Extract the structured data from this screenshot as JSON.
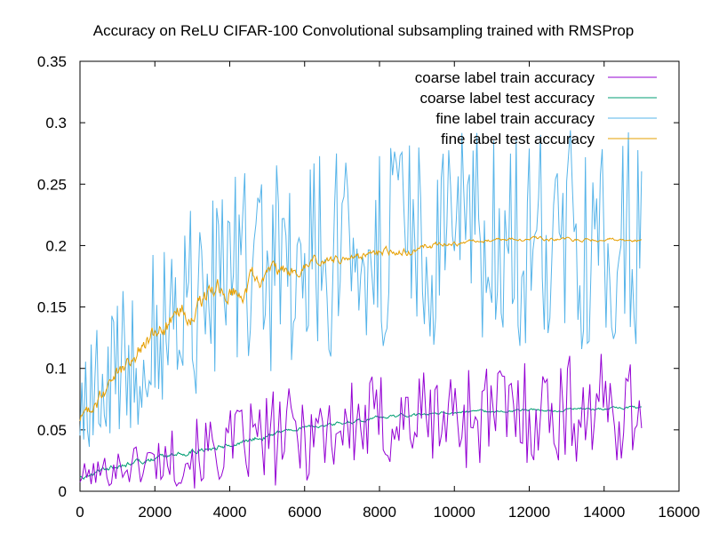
{
  "chart_data": {
    "type": "line",
    "title": "Accuracy on ReLU CIFAR-100 Convolutional subsampling trained with RMSProp",
    "xlabel": "",
    "ylabel": "",
    "xlim": [
      0,
      16000
    ],
    "ylim": [
      0,
      0.35
    ],
    "x_ticks": [
      0,
      2000,
      4000,
      6000,
      8000,
      10000,
      12000,
      14000,
      16000
    ],
    "y_ticks": [
      0,
      0.05,
      0.1,
      0.15,
      0.2,
      0.25,
      0.3,
      0.35
    ],
    "x_tick_labels": [
      "0",
      "2000",
      "4000",
      "6000",
      "8000",
      "10000",
      "12000",
      "14000",
      "16000"
    ],
    "y_tick_labels": [
      "0",
      "0.05",
      "0.1",
      "0.15",
      "0.2",
      "0.25",
      "0.3",
      "0.35"
    ],
    "grid": false,
    "legend_position": "top-right",
    "series": [
      {
        "name": "coarse label train accuracy",
        "color": "#9400d3",
        "x": [
          0,
          500,
          1000,
          1500,
          2000,
          2500,
          3000,
          3500,
          4000,
          4500,
          5000,
          5500,
          6000,
          6500,
          7000,
          7500,
          8000,
          8500,
          9000,
          9500,
          10000,
          10500,
          11000,
          11500,
          12000,
          12500,
          13000,
          13500,
          14000,
          14500,
          15000
        ],
        "y": [
          0.012,
          0.015,
          0.02,
          0.022,
          0.025,
          0.028,
          0.03,
          0.033,
          0.036,
          0.04,
          0.042,
          0.045,
          0.048,
          0.05,
          0.052,
          0.054,
          0.056,
          0.058,
          0.06,
          0.06,
          0.062,
          0.063,
          0.064,
          0.065,
          0.065,
          0.066,
          0.066,
          0.067,
          0.067,
          0.067,
          0.068
        ],
        "noise": [
          0.01,
          0.012,
          0.015,
          0.018,
          0.02,
          0.025,
          0.028,
          0.03,
          0.032,
          0.035,
          0.038,
          0.04,
          0.04,
          0.04,
          0.04,
          0.04,
          0.042,
          0.042,
          0.042,
          0.042,
          0.045,
          0.045,
          0.045,
          0.045,
          0.045,
          0.045,
          0.045,
          0.045,
          0.045,
          0.045,
          0.04
        ]
      },
      {
        "name": "coarse label test accuracy",
        "color": "#009e73",
        "x": [
          0,
          500,
          1000,
          1500,
          2000,
          2500,
          3000,
          3500,
          4000,
          4500,
          5000,
          5500,
          6000,
          6500,
          7000,
          7500,
          8000,
          8500,
          9000,
          9500,
          10000,
          10500,
          11000,
          11500,
          12000,
          12500,
          13000,
          13500,
          14000,
          14500,
          15000
        ],
        "y": [
          0.012,
          0.017,
          0.021,
          0.024,
          0.027,
          0.03,
          0.033,
          0.036,
          0.039,
          0.042,
          0.046,
          0.049,
          0.052,
          0.054,
          0.056,
          0.058,
          0.06,
          0.061,
          0.062,
          0.063,
          0.064,
          0.065,
          0.065,
          0.066,
          0.066,
          0.066,
          0.067,
          0.067,
          0.067,
          0.068,
          0.068
        ],
        "noise": [
          0.003,
          0.003,
          0.003,
          0.003,
          0.003,
          0.003,
          0.003,
          0.003,
          0.003,
          0.003,
          0.003,
          0.002,
          0.002,
          0.002,
          0.002,
          0.002,
          0.002,
          0.002,
          0.002,
          0.002,
          0.0015,
          0.0015,
          0.0015,
          0.0015,
          0.0015,
          0.0015,
          0.0015,
          0.0015,
          0.0015,
          0.0015,
          0.0015
        ]
      },
      {
        "name": "fine label train accuracy",
        "color": "#56b4e9",
        "x": [
          0,
          500,
          1000,
          1500,
          2000,
          2500,
          3000,
          3500,
          4000,
          4500,
          5000,
          5500,
          6000,
          6500,
          7000,
          7500,
          8000,
          8500,
          9000,
          9500,
          10000,
          10500,
          11000,
          11500,
          12000,
          12500,
          13000,
          13500,
          14000,
          14500,
          15000
        ],
        "y": [
          0.06,
          0.08,
          0.1,
          0.115,
          0.13,
          0.145,
          0.155,
          0.165,
          0.17,
          0.175,
          0.18,
          0.185,
          0.19,
          0.19,
          0.195,
          0.195,
          0.2,
          0.2,
          0.2,
          0.2,
          0.2,
          0.205,
          0.205,
          0.205,
          0.205,
          0.205,
          0.205,
          0.205,
          0.205,
          0.205,
          0.205
        ],
        "noise": [
          0.05,
          0.055,
          0.06,
          0.065,
          0.07,
          0.075,
          0.08,
          0.08,
          0.085,
          0.085,
          0.09,
          0.09,
          0.09,
          0.09,
          0.09,
          0.09,
          0.09,
          0.09,
          0.09,
          0.09,
          0.09,
          0.09,
          0.09,
          0.09,
          0.09,
          0.09,
          0.09,
          0.09,
          0.09,
          0.09,
          0.09
        ]
      },
      {
        "name": "fine label test accuracy",
        "color": "#e69f00",
        "x": [
          0,
          500,
          1000,
          1500,
          2000,
          2500,
          3000,
          3500,
          4000,
          4500,
          5000,
          5500,
          6000,
          6500,
          7000,
          7500,
          8000,
          8500,
          9000,
          9500,
          10000,
          10500,
          11000,
          11500,
          12000,
          12500,
          13000,
          13500,
          14000,
          14500,
          15000
        ],
        "y": [
          0.058,
          0.075,
          0.095,
          0.112,
          0.127,
          0.14,
          0.15,
          0.158,
          0.165,
          0.17,
          0.175,
          0.178,
          0.182,
          0.185,
          0.188,
          0.191,
          0.194,
          0.196,
          0.198,
          0.2,
          0.202,
          0.203,
          0.204,
          0.205,
          0.205,
          0.205,
          0.205,
          0.205,
          0.205,
          0.205,
          0.205
        ],
        "noise": [
          0.008,
          0.01,
          0.012,
          0.012,
          0.012,
          0.012,
          0.012,
          0.012,
          0.012,
          0.01,
          0.01,
          0.008,
          0.008,
          0.006,
          0.006,
          0.006,
          0.005,
          0.005,
          0.005,
          0.004,
          0.003,
          0.002,
          0.002,
          0.002,
          0.002,
          0.002,
          0.002,
          0.002,
          0.002,
          0.002,
          0.002
        ]
      }
    ]
  }
}
